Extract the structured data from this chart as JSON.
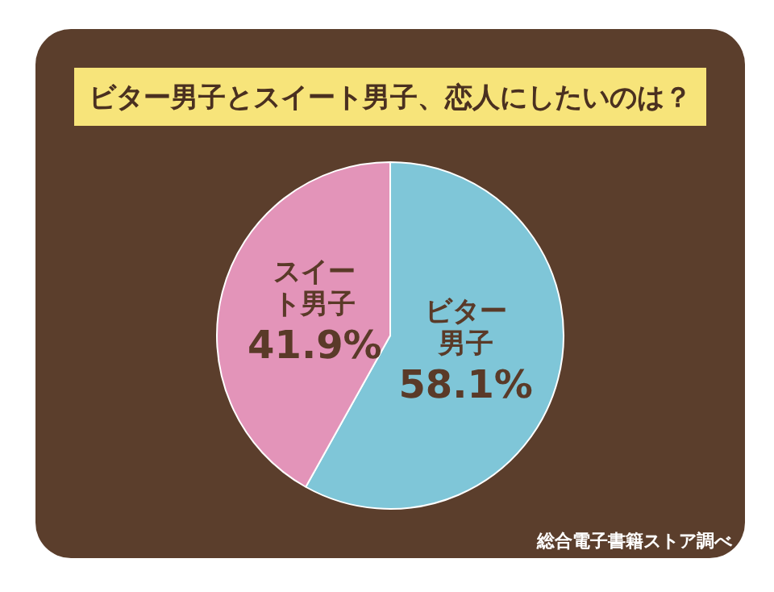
{
  "chart_data": {
    "type": "pie",
    "title": "ビター男子とスイート男子、恋人にしたいのは？",
    "categories": [
      "ビター男子",
      "スイート男子"
    ],
    "values": [
      58.1,
      41.9
    ],
    "colors": [
      "#7fc6d8",
      "#e394b9"
    ],
    "value_labels": [
      "58.1%",
      "41.9%"
    ],
    "legend": false,
    "annotations": [
      "総合電子書籍ストア調べ"
    ]
  }
}
